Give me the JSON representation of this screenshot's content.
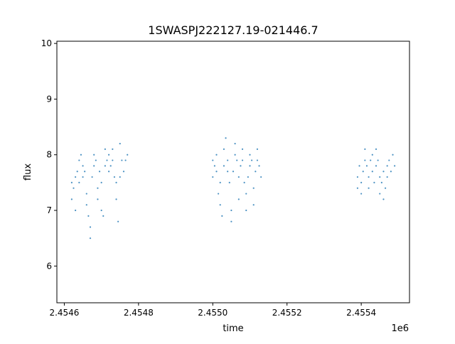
{
  "chart_data": {
    "type": "scatter",
    "title": "1SWASPJ222127.19-021446.7",
    "xlabel": "time",
    "ylabel": "flux",
    "x_offset_label": "1e6",
    "xlim": [
      2.45458,
      2.45553
    ],
    "ylim": [
      5.34,
      10.04
    ],
    "x_ticks": [
      2.4546,
      2.4548,
      2.455,
      2.4552,
      2.4554
    ],
    "x_tick_labels": [
      "2.4546",
      "2.4548",
      "2.4550",
      "2.4552",
      "2.4554"
    ],
    "y_ticks": [
      6,
      7,
      8,
      9,
      10
    ],
    "y_tick_labels": [
      "6",
      "7",
      "8",
      "9",
      "10"
    ],
    "grid": false,
    "legend": "none",
    "marker_color": "#1f77b4",
    "series": [
      {
        "points": [
          [
            2.45462,
            7.2
          ],
          [
            2.45462,
            7.5
          ],
          [
            2.454625,
            7.4
          ],
          [
            2.45463,
            7.6
          ],
          [
            2.45463,
            7.0
          ],
          [
            2.454635,
            7.7
          ],
          [
            2.45464,
            7.9
          ],
          [
            2.45464,
            7.5
          ],
          [
            2.454645,
            8.0
          ],
          [
            2.45465,
            7.8
          ],
          [
            2.45465,
            7.6
          ],
          [
            2.454655,
            7.7
          ],
          [
            2.45466,
            7.3
          ],
          [
            2.45466,
            7.1
          ],
          [
            2.454665,
            6.9
          ],
          [
            2.45467,
            6.7
          ],
          [
            2.45467,
            6.5
          ],
          [
            2.454675,
            7.6
          ],
          [
            2.45468,
            7.8
          ],
          [
            2.45468,
            8.0
          ],
          [
            2.454685,
            7.9
          ],
          [
            2.45469,
            7.4
          ],
          [
            2.45469,
            7.2
          ],
          [
            2.454695,
            7.7
          ],
          [
            2.4547,
            7.5
          ],
          [
            2.4547,
            7.0
          ],
          [
            2.454705,
            6.9
          ],
          [
            2.45471,
            7.8
          ],
          [
            2.45471,
            8.1
          ],
          [
            2.454715,
            7.9
          ],
          [
            2.45472,
            8.0
          ],
          [
            2.45472,
            7.7
          ],
          [
            2.454725,
            7.8
          ],
          [
            2.45473,
            8.1
          ],
          [
            2.45473,
            7.9
          ],
          [
            2.454735,
            7.6
          ],
          [
            2.45474,
            7.5
          ],
          [
            2.45474,
            7.2
          ],
          [
            2.454745,
            6.8
          ],
          [
            2.45475,
            7.6
          ],
          [
            2.45475,
            8.2
          ],
          [
            2.454755,
            7.9
          ],
          [
            2.45476,
            7.7
          ],
          [
            2.454765,
            7.9
          ],
          [
            2.45477,
            8.0
          ],
          [
            2.455,
            7.6
          ],
          [
            2.455,
            7.9
          ],
          [
            2.455005,
            7.8
          ],
          [
            2.45501,
            8.0
          ],
          [
            2.45501,
            7.7
          ],
          [
            2.455015,
            7.3
          ],
          [
            2.45502,
            7.5
          ],
          [
            2.45502,
            7.1
          ],
          [
            2.455025,
            6.9
          ],
          [
            2.45503,
            7.8
          ],
          [
            2.45503,
            8.1
          ],
          [
            2.455035,
            8.3
          ],
          [
            2.45504,
            7.9
          ],
          [
            2.45504,
            7.7
          ],
          [
            2.455045,
            7.5
          ],
          [
            2.45505,
            7.0
          ],
          [
            2.45505,
            6.8
          ],
          [
            2.455055,
            7.7
          ],
          [
            2.45506,
            8.0
          ],
          [
            2.45506,
            8.2
          ],
          [
            2.455065,
            7.9
          ],
          [
            2.45507,
            7.6
          ],
          [
            2.45507,
            7.2
          ],
          [
            2.455075,
            7.8
          ],
          [
            2.45508,
            7.9
          ],
          [
            2.45508,
            8.1
          ],
          [
            2.455085,
            7.5
          ],
          [
            2.45509,
            7.3
          ],
          [
            2.45509,
            7.0
          ],
          [
            2.455095,
            7.6
          ],
          [
            2.4551,
            7.8
          ],
          [
            2.4551,
            8.0
          ],
          [
            2.455105,
            7.9
          ],
          [
            2.45511,
            7.4
          ],
          [
            2.45511,
            7.1
          ],
          [
            2.455115,
            7.7
          ],
          [
            2.45512,
            7.9
          ],
          [
            2.45512,
            8.1
          ],
          [
            2.455125,
            7.8
          ],
          [
            2.45513,
            7.6
          ],
          [
            2.45539,
            7.4
          ],
          [
            2.45539,
            7.6
          ],
          [
            2.455395,
            7.8
          ],
          [
            2.4554,
            7.5
          ],
          [
            2.4554,
            7.3
          ],
          [
            2.455405,
            7.7
          ],
          [
            2.45541,
            7.9
          ],
          [
            2.45541,
            8.1
          ],
          [
            2.455415,
            7.8
          ],
          [
            2.45542,
            7.6
          ],
          [
            2.45542,
            7.4
          ],
          [
            2.455425,
            7.9
          ],
          [
            2.45543,
            8.0
          ],
          [
            2.45543,
            7.7
          ],
          [
            2.455435,
            7.5
          ],
          [
            2.45544,
            7.8
          ],
          [
            2.45544,
            8.1
          ],
          [
            2.455445,
            7.9
          ],
          [
            2.45545,
            7.6
          ],
          [
            2.45545,
            7.3
          ],
          [
            2.455455,
            7.5
          ],
          [
            2.45546,
            7.7
          ],
          [
            2.45546,
            7.2
          ],
          [
            2.455465,
            7.4
          ],
          [
            2.45547,
            7.6
          ],
          [
            2.45547,
            7.8
          ],
          [
            2.455475,
            7.9
          ],
          [
            2.45548,
            7.7
          ],
          [
            2.455485,
            8.0
          ],
          [
            2.45549,
            7.8
          ]
        ]
      }
    ]
  }
}
